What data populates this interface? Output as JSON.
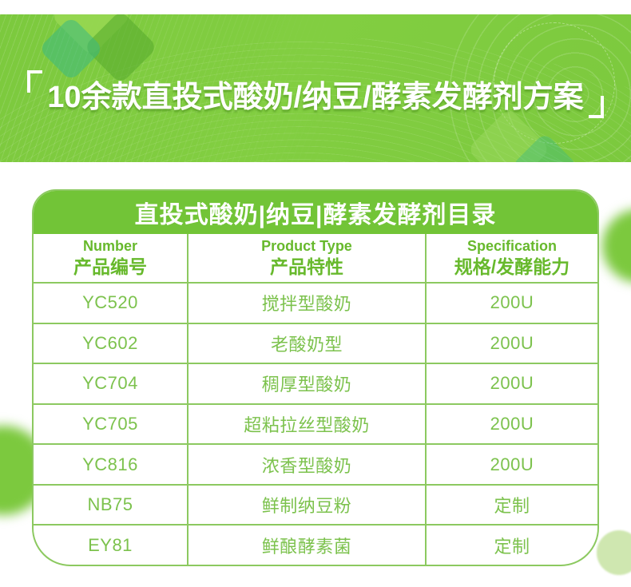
{
  "banner": {
    "title": "10余款直投式酸奶/纳豆/酵素发酵剂方案"
  },
  "catalog": {
    "header": "直投式酸奶|纳豆|酵素发酵剂目录",
    "columns": [
      {
        "en": "Number",
        "zh": "产品编号"
      },
      {
        "en": "Product Type",
        "zh": "产品特性"
      },
      {
        "en": "Specification",
        "zh": "规格/发酵能力"
      }
    ],
    "rows": [
      {
        "number": "YC520",
        "type": "搅拌型酸奶",
        "spec": "200U"
      },
      {
        "number": "YC602",
        "type": "老酸奶型",
        "spec": "200U"
      },
      {
        "number": "YC704",
        "type": "稠厚型酸奶",
        "spec": "200U"
      },
      {
        "number": "YC705",
        "type": "超粘拉丝型酸奶",
        "spec": "200U"
      },
      {
        "number": "YC816",
        "type": "浓香型酸奶",
        "spec": "200U"
      },
      {
        "number": "NB75",
        "type": "鲜制纳豆粉",
        "spec": "定制"
      },
      {
        "number": "EY81",
        "type": "鲜酿酵素菌",
        "spec": "定制"
      }
    ]
  },
  "colors": {
    "banner-green": "#7cc93e",
    "header-green": "#72c437",
    "line-green": "#8cc960",
    "head-text": "#67b92c",
    "cell-text": "#7cc24d",
    "pale-green": "#cfe7b0"
  }
}
